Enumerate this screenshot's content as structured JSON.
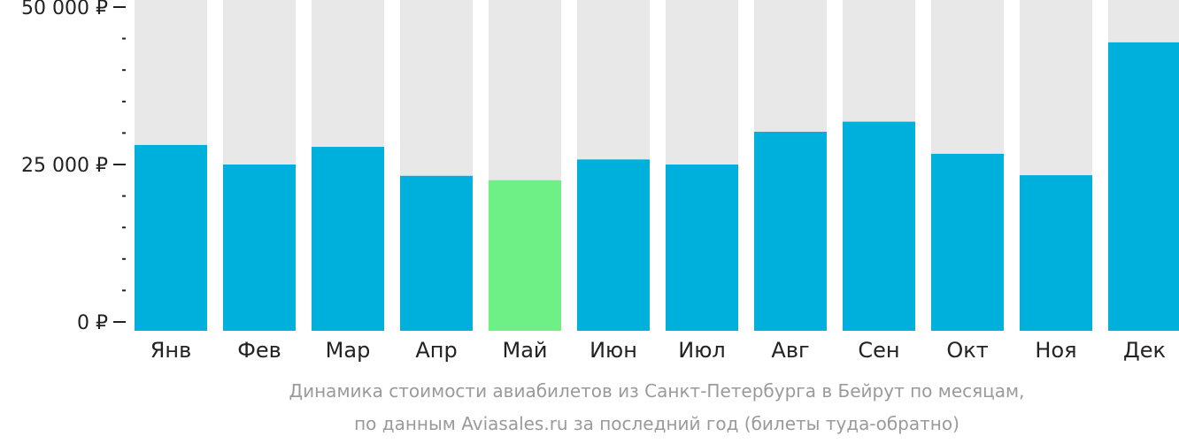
{
  "chart_data": {
    "type": "bar",
    "categories": [
      "Янв",
      "Фев",
      "Мар",
      "Апр",
      "Май",
      "Июн",
      "Июл",
      "Авг",
      "Сен",
      "Окт",
      "Ноя",
      "Дек"
    ],
    "values": [
      28100,
      25000,
      27800,
      23200,
      22500,
      25800,
      25000,
      30200,
      31800,
      26700,
      23300,
      44400
    ],
    "highlight_index": 4,
    "ylim": [
      0,
      50000
    ],
    "y_ticks": [
      {
        "value": 0,
        "label": "0 ₽"
      },
      {
        "value": 25000,
        "label": "25 000 ₽"
      },
      {
        "value": 50000,
        "label": "50 000 ₽"
      }
    ],
    "minor_tick_step": 5000,
    "colors": {
      "bar": "#00b0dc",
      "highlight": "#6ef084",
      "background_bar": "#e8e8e8",
      "axis": "#222222"
    }
  },
  "caption": {
    "line1": "Динамика стоимости авиабилетов из Санкт-Петербурга в Бейрут по месяцам,",
    "line2": "по данным Aviasales.ru за последний год (билеты туда-обратно)"
  }
}
